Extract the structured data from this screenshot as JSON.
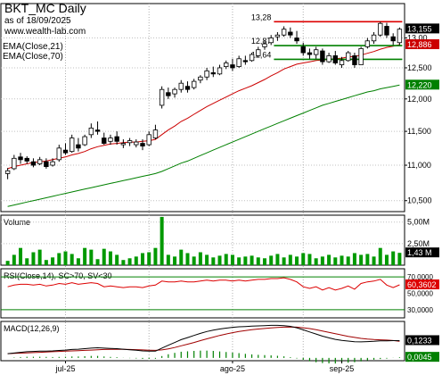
{
  "header": {
    "title": "BKT_MC Daily",
    "asof": "as of 18/09/2025",
    "site": "www.wealth-lab.com"
  },
  "colors": {
    "up_candle": "#ffffff",
    "down_candle": "#000000",
    "ema21": "#cc0000",
    "ema70": "#008000",
    "resistance": "#dd0000",
    "support": "#008000",
    "volume": "#009900",
    "rsi_line": "#dd0000",
    "rsi_band": "#008000",
    "macd": "#000000",
    "signal": "#a00000",
    "hist": "#008000",
    "last_price_tag": "#cc0000",
    "ema70_tag": "#008000"
  },
  "chart_data": [
    {
      "type": "candlestick",
      "panel": "price",
      "legend": [
        "EMA(Close,21)",
        "EMA(Close,70)"
      ],
      "y_scale": "log",
      "ylim": [
        10.35,
        13.6
      ],
      "y_ticks": [
        "13,00",
        "12,500",
        "12,000",
        "11,500",
        "11,000",
        "10,500"
      ],
      "x_ticks": [
        "jul-25",
        "ago-25",
        "sep-25"
      ],
      "level_labels": [
        {
          "label": "13,28",
          "value": 13.28
        },
        {
          "label": "12,87",
          "value": 12.87
        },
        {
          "label": "12,64",
          "value": 12.64
        }
      ],
      "price_tags": {
        "last_close": "13,155",
        "ema21": "12,886",
        "ema70": "12,220"
      },
      "candles": [
        [
          10.88,
          10.96,
          10.8,
          10.92
        ],
        [
          10.95,
          11.15,
          10.93,
          11.1
        ],
        [
          11.12,
          11.18,
          11.02,
          11.08
        ],
        [
          11.1,
          11.13,
          11.02,
          11.06
        ],
        [
          11.05,
          11.1,
          10.97,
          11.0
        ],
        [
          11.02,
          11.12,
          11.0,
          11.08
        ],
        [
          11.05,
          11.1,
          10.95,
          10.98
        ],
        [
          11.0,
          11.1,
          10.98,
          11.05
        ],
        [
          11.08,
          11.3,
          11.05,
          11.25
        ],
        [
          11.22,
          11.32,
          11.15,
          11.18
        ],
        [
          11.2,
          11.45,
          11.18,
          11.4
        ],
        [
          11.3,
          11.4,
          11.2,
          11.25
        ],
        [
          11.3,
          11.45,
          11.28,
          11.42
        ],
        [
          11.45,
          11.62,
          11.4,
          11.55
        ],
        [
          11.52,
          11.65,
          11.45,
          11.5
        ],
        [
          11.4,
          11.48,
          11.3,
          11.32
        ],
        [
          11.35,
          11.45,
          11.3,
          11.4
        ],
        [
          11.42,
          11.5,
          11.3,
          11.35
        ],
        [
          11.3,
          11.38,
          11.25,
          11.32
        ],
        [
          11.33,
          11.4,
          11.28,
          11.36
        ],
        [
          11.3,
          11.38,
          11.26,
          11.34
        ],
        [
          11.32,
          11.38,
          11.22,
          11.28
        ],
        [
          11.3,
          11.5,
          11.28,
          11.45
        ],
        [
          11.4,
          11.6,
          11.38,
          11.52
        ],
        [
          11.9,
          12.2,
          11.85,
          12.15
        ],
        [
          12.1,
          12.18,
          12.0,
          12.05
        ],
        [
          12.08,
          12.18,
          12.02,
          12.15
        ],
        [
          12.15,
          12.3,
          12.1,
          12.25
        ],
        [
          12.2,
          12.28,
          12.1,
          12.15
        ],
        [
          12.18,
          12.32,
          12.15,
          12.28
        ],
        [
          12.3,
          12.38,
          12.25,
          12.35
        ],
        [
          12.35,
          12.5,
          12.3,
          12.45
        ],
        [
          12.42,
          12.52,
          12.35,
          12.4
        ],
        [
          12.4,
          12.55,
          12.38,
          12.5
        ],
        [
          12.52,
          12.62,
          12.48,
          12.58
        ],
        [
          12.55,
          12.65,
          12.45,
          12.5
        ],
        [
          12.52,
          12.7,
          12.5,
          12.65
        ],
        [
          12.62,
          12.7,
          12.55,
          12.6
        ],
        [
          12.62,
          12.75,
          12.6,
          12.72
        ],
        [
          12.7,
          12.85,
          12.68,
          12.8
        ],
        [
          12.85,
          12.95,
          12.8,
          12.9
        ],
        [
          12.92,
          13.05,
          12.88,
          13.0
        ],
        [
          13.02,
          13.1,
          12.95,
          13.05
        ],
        [
          13.05,
          13.2,
          13.02,
          13.15
        ],
        [
          13.1,
          13.18,
          13.0,
          13.05
        ],
        [
          13.0,
          13.12,
          12.9,
          12.95
        ],
        [
          12.85,
          12.92,
          12.7,
          12.75
        ],
        [
          12.75,
          12.82,
          12.65,
          12.72
        ],
        [
          12.72,
          12.85,
          12.65,
          12.8
        ],
        [
          12.78,
          12.82,
          12.55,
          12.6
        ],
        [
          12.6,
          12.75,
          12.58,
          12.7
        ],
        [
          12.7,
          12.78,
          12.55,
          12.58
        ],
        [
          12.55,
          12.68,
          12.5,
          12.62
        ],
        [
          12.62,
          12.78,
          12.6,
          12.75
        ],
        [
          12.7,
          12.75,
          12.5,
          12.55
        ],
        [
          12.55,
          12.85,
          12.55,
          12.82
        ],
        [
          12.85,
          13.0,
          12.82,
          12.95
        ],
        [
          12.95,
          13.1,
          12.9,
          13.05
        ],
        [
          13.05,
          13.28,
          13.02,
          13.25
        ],
        [
          13.2,
          13.26,
          13.0,
          13.05
        ],
        [
          13.02,
          13.08,
          12.88,
          12.95
        ],
        [
          12.92,
          13.18,
          12.88,
          13.15
        ]
      ],
      "ema21": [
        10.95,
        10.98,
        11.0,
        11.02,
        11.04,
        11.05,
        11.06,
        11.08,
        11.1,
        11.12,
        11.15,
        11.17,
        11.2,
        11.24,
        11.27,
        11.29,
        11.31,
        11.32,
        11.33,
        11.34,
        11.34,
        11.35,
        11.36,
        11.38,
        11.45,
        11.52,
        11.58,
        11.65,
        11.7,
        11.76,
        11.82,
        11.88,
        11.93,
        11.98,
        12.03,
        12.08,
        12.13,
        12.17,
        12.21,
        12.26,
        12.31,
        12.37,
        12.42,
        12.48,
        12.52,
        12.56,
        12.58,
        12.6,
        12.62,
        12.63,
        12.64,
        12.65,
        12.66,
        12.68,
        12.69,
        12.71,
        12.74,
        12.77,
        12.81,
        12.84,
        12.86,
        12.886
      ],
      "ema70": [
        10.42,
        10.44,
        10.46,
        10.48,
        10.5,
        10.52,
        10.54,
        10.56,
        10.58,
        10.6,
        10.62,
        10.64,
        10.66,
        10.68,
        10.7,
        10.72,
        10.74,
        10.76,
        10.78,
        10.8,
        10.82,
        10.84,
        10.86,
        10.88,
        10.91,
        10.95,
        10.99,
        11.03,
        11.06,
        11.1,
        11.14,
        11.18,
        11.22,
        11.26,
        11.3,
        11.34,
        11.38,
        11.42,
        11.46,
        11.5,
        11.54,
        11.58,
        11.62,
        11.66,
        11.7,
        11.74,
        11.78,
        11.82,
        11.86,
        11.9,
        11.93,
        11.96,
        11.99,
        12.02,
        12.05,
        12.08,
        12.11,
        12.13,
        12.16,
        12.18,
        12.2,
        12.22
      ],
      "resistance": 13.28,
      "supports": [
        12.87,
        12.64
      ]
    },
    {
      "type": "bar",
      "panel": "volume",
      "title": "Volume",
      "ylim": [
        0,
        5.8
      ],
      "y_ticks": [
        "5,00M",
        "2,50M"
      ],
      "last_label": "1,43 M",
      "values": [
        0.5,
        1.2,
        2.0,
        0.8,
        1.5,
        1.8,
        0.6,
        0.9,
        1.4,
        1.6,
        1.3,
        0.8,
        2.0,
        1.8,
        0.7,
        1.9,
        1.6,
        1.2,
        0.6,
        0.8,
        1.0,
        1.4,
        1.5,
        2.0,
        5.6,
        1.2,
        1.0,
        1.8,
        1.4,
        1.0,
        1.5,
        1.2,
        0.9,
        1.1,
        1.3,
        1.2,
        0.9,
        1.0,
        1.1,
        0.9,
        0.8,
        1.1,
        1.3,
        0.9,
        1.2,
        1.0,
        1.4,
        1.3,
        0.8,
        1.0,
        1.2,
        0.9,
        1.1,
        1.0,
        1.4,
        1.2,
        1.3,
        1.0,
        2.0,
        1.2,
        1.6,
        1.43
      ]
    },
    {
      "type": "line",
      "panel": "rsi",
      "title": "RSI(Close,14), SC>70, SV<30",
      "ylim": [
        20,
        80
      ],
      "y_ticks": [
        "70,0000",
        "50,0000",
        "30,0000"
      ],
      "bands": [
        70,
        30
      ],
      "last_label": "60,3602",
      "values": [
        58,
        60,
        61,
        61,
        60,
        61,
        59,
        60,
        62,
        61,
        63,
        61,
        62,
        63,
        62,
        58,
        59,
        58,
        57,
        58,
        58,
        57,
        59,
        60,
        65,
        64,
        64,
        65,
        64,
        64,
        65,
        66,
        65,
        66,
        66,
        65,
        66,
        65,
        66,
        67,
        67,
        68,
        68,
        69,
        67,
        64,
        58,
        56,
        58,
        54,
        57,
        54,
        56,
        59,
        55,
        62,
        64,
        65,
        67,
        60,
        57,
        60.36
      ]
    },
    {
      "type": "line",
      "panel": "macd",
      "title": "MACD(12,26,9)",
      "ylim": [
        -0.02,
        0.26
      ],
      "last_labels": {
        "macd": "0,1233",
        "hist": "0,0045"
      },
      "macd": [
        0.03,
        0.035,
        0.04,
        0.044,
        0.046,
        0.048,
        0.049,
        0.05,
        0.053,
        0.056,
        0.06,
        0.062,
        0.066,
        0.07,
        0.072,
        0.07,
        0.068,
        0.066,
        0.062,
        0.058,
        0.055,
        0.05,
        0.048,
        0.048,
        0.07,
        0.09,
        0.11,
        0.13,
        0.145,
        0.16,
        0.175,
        0.188,
        0.198,
        0.206,
        0.212,
        0.218,
        0.222,
        0.224,
        0.226,
        0.228,
        0.23,
        0.232,
        0.232,
        0.23,
        0.225,
        0.215,
        0.2,
        0.185,
        0.17,
        0.155,
        0.143,
        0.132,
        0.125,
        0.12,
        0.115,
        0.114,
        0.116,
        0.118,
        0.121,
        0.122,
        0.123,
        0.1233
      ],
      "signal": [
        0.03,
        0.032,
        0.034,
        0.036,
        0.038,
        0.04,
        0.042,
        0.044,
        0.046,
        0.048,
        0.05,
        0.052,
        0.054,
        0.056,
        0.058,
        0.06,
        0.061,
        0.061,
        0.061,
        0.06,
        0.059,
        0.057,
        0.055,
        0.054,
        0.057,
        0.064,
        0.074,
        0.086,
        0.098,
        0.11,
        0.123,
        0.136,
        0.148,
        0.16,
        0.17,
        0.18,
        0.188,
        0.195,
        0.201,
        0.206,
        0.21,
        0.214,
        0.217,
        0.219,
        0.22,
        0.219,
        0.215,
        0.209,
        0.201,
        0.192,
        0.182,
        0.172,
        0.163,
        0.154,
        0.146,
        0.139,
        0.134,
        0.131,
        0.129,
        0.127,
        0.124,
        0.1188
      ],
      "hist": [
        0.0,
        0.003,
        0.006,
        0.008,
        0.008,
        0.008,
        0.007,
        0.006,
        0.007,
        0.008,
        0.01,
        0.01,
        0.012,
        0.014,
        0.014,
        0.01,
        0.007,
        0.005,
        0.001,
        -0.002,
        -0.004,
        -0.007,
        -0.007,
        -0.006,
        0.013,
        0.026,
        0.036,
        0.044,
        0.047,
        0.05,
        0.052,
        0.052,
        0.05,
        0.046,
        0.042,
        0.038,
        0.034,
        0.029,
        0.025,
        0.022,
        0.02,
        0.018,
        0.015,
        0.011,
        0.005,
        -0.004,
        -0.015,
        -0.024,
        -0.031,
        -0.037,
        -0.039,
        -0.04,
        -0.038,
        -0.034,
        -0.031,
        -0.025,
        -0.018,
        -0.013,
        -0.008,
        -0.005,
        -0.001,
        0.0045
      ]
    }
  ]
}
